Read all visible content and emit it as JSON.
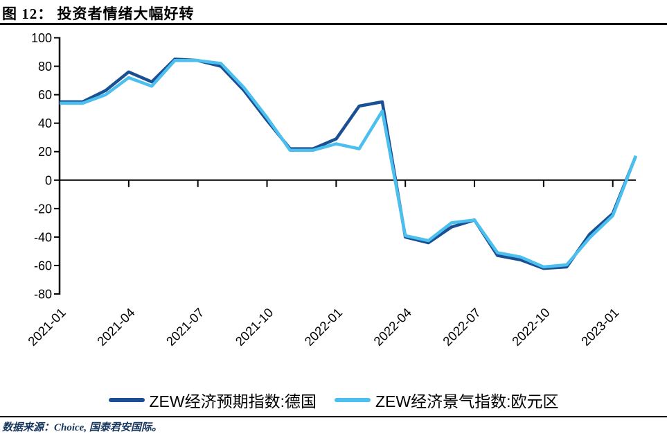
{
  "header": {
    "title": "图 12：  投资者情绪大幅好转"
  },
  "chart_data": {
    "type": "line",
    "x": [
      "2021-01",
      "2021-02",
      "2021-03",
      "2021-04",
      "2021-05",
      "2021-06",
      "2021-07",
      "2021-08",
      "2021-09",
      "2021-10",
      "2021-11",
      "2021-12",
      "2022-01",
      "2022-02",
      "2022-03",
      "2022-04",
      "2022-05",
      "2022-06",
      "2022-07",
      "2022-08",
      "2022-09",
      "2022-10",
      "2022-11",
      "2022-12",
      "2023-01",
      "2023-02"
    ],
    "x_tick_labels": [
      "2021-01",
      "2021-04",
      "2021-07",
      "2021-10",
      "2022-01",
      "2022-04",
      "2022-07",
      "2022-10",
      "2023-01"
    ],
    "y_ticks": [
      100,
      80,
      60,
      40,
      20,
      0,
      -20,
      -40,
      -60,
      -80
    ],
    "ylim": [
      -80,
      100
    ],
    "grid": false,
    "legend_position": "bottom",
    "series": [
      {
        "name": "ZEW经济预期指数:德国",
        "color": "#1B4F93",
        "values": [
          55,
          55,
          63,
          76,
          69,
          85,
          84,
          80,
          63,
          42,
          22,
          22,
          29,
          52,
          55,
          -40,
          -44,
          -33,
          -28,
          -53,
          -56,
          -62,
          -61,
          -38,
          -23.5,
          17
        ]
      },
      {
        "name": "ZEW经济景气指数:欧元区",
        "color": "#4BBFEE",
        "values": [
          54,
          54,
          60,
          72,
          66,
          84,
          84,
          82,
          65,
          44,
          21,
          21,
          25.5,
          22,
          48.5,
          -39,
          -42.5,
          -30,
          -28,
          -51,
          -54,
          -61,
          -59.5,
          -40.5,
          -25,
          17
        ]
      }
    ]
  },
  "legend": {
    "items": [
      {
        "label": "ZEW经济预期指数:德国",
        "color": "#1B4F93"
      },
      {
        "label": "ZEW经济景气指数:欧元区",
        "color": "#4BBFEE"
      }
    ]
  },
  "footer": {
    "source": "数据来源：Choice, 国泰君安国际。"
  }
}
